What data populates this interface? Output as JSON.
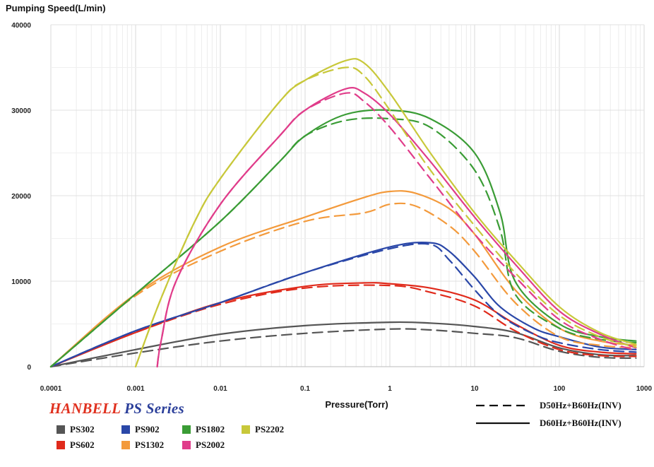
{
  "chart_data": {
    "type": "line",
    "ylabel": "Pumping Speed(L/min)",
    "xlabel": "Pressure(Torr)",
    "xscale": "log",
    "xlim": [
      0.0001,
      1000
    ],
    "ylim": [
      0,
      40000
    ],
    "xticks": [
      "0.0001",
      "0.001",
      "0.01",
      "0.1",
      "1",
      "10",
      "100",
      "1000"
    ],
    "yticks": [
      "0",
      "10000",
      "20000",
      "30000",
      "40000"
    ],
    "grid": true,
    "brand": {
      "primary": "HANBELL",
      "secondary": "PS Series"
    },
    "line_styles": [
      {
        "label": "D50Hz+B60Hz(INV)",
        "dash": "dashed"
      },
      {
        "label": "D60Hz+B60Hz(INV)",
        "dash": "solid"
      }
    ],
    "series": [
      {
        "name": "PS302",
        "color": "#555555",
        "solid": [
          [
            0.0001,
            0
          ],
          [
            0.001,
            2000
          ],
          [
            0.01,
            3800
          ],
          [
            0.1,
            4800
          ],
          [
            1,
            5200
          ],
          [
            3,
            5100
          ],
          [
            10,
            4700
          ],
          [
            30,
            4000
          ],
          [
            100,
            2200
          ],
          [
            300,
            1400
          ],
          [
            800,
            1300
          ]
        ],
        "dashed": [
          [
            0.0001,
            0
          ],
          [
            0.001,
            1600
          ],
          [
            0.01,
            3000
          ],
          [
            0.1,
            3900
          ],
          [
            1,
            4400
          ],
          [
            3,
            4300
          ],
          [
            10,
            3900
          ],
          [
            30,
            3400
          ],
          [
            100,
            1800
          ],
          [
            300,
            1100
          ],
          [
            800,
            1000
          ]
        ]
      },
      {
        "name": "PS602",
        "color": "#e02a1b",
        "solid": [
          [
            0.0001,
            0
          ],
          [
            0.001,
            4000
          ],
          [
            0.01,
            7500
          ],
          [
            0.1,
            9400
          ],
          [
            0.5,
            9800
          ],
          [
            1,
            9700
          ],
          [
            3,
            9200
          ],
          [
            10,
            7800
          ],
          [
            30,
            5000
          ],
          [
            100,
            2500
          ],
          [
            300,
            1700
          ],
          [
            800,
            1500
          ]
        ],
        "dashed": [
          [
            0.0001,
            0
          ],
          [
            0.001,
            4000
          ],
          [
            0.01,
            7300
          ],
          [
            0.1,
            9200
          ],
          [
            1,
            9500
          ],
          [
            3,
            8700
          ],
          [
            10,
            7100
          ],
          [
            30,
            4200
          ],
          [
            100,
            2000
          ],
          [
            300,
            1300
          ],
          [
            800,
            1200
          ]
        ]
      },
      {
        "name": "PS902",
        "color": "#2a47a8",
        "solid": [
          [
            0.0001,
            0
          ],
          [
            0.001,
            4200
          ],
          [
            0.01,
            7500
          ],
          [
            0.1,
            11000
          ],
          [
            1,
            14000
          ],
          [
            3,
            14500
          ],
          [
            5,
            13500
          ],
          [
            10,
            10500
          ],
          [
            20,
            7000
          ],
          [
            50,
            4500
          ],
          [
            100,
            3500
          ],
          [
            300,
            2300
          ],
          [
            800,
            2000
          ]
        ],
        "dashed": [
          [
            0.0001,
            0
          ],
          [
            0.001,
            4200
          ],
          [
            0.01,
            7500
          ],
          [
            0.1,
            11000
          ],
          [
            1,
            13800
          ],
          [
            3,
            14300
          ],
          [
            5,
            12500
          ],
          [
            10,
            9000
          ],
          [
            20,
            6000
          ],
          [
            50,
            3800
          ],
          [
            100,
            2800
          ],
          [
            300,
            2000
          ],
          [
            800,
            1700
          ]
        ]
      },
      {
        "name": "PS1302",
        "color": "#f39a3c",
        "solid": [
          [
            0.0001,
            0
          ],
          [
            0.001,
            8500
          ],
          [
            0.01,
            14000
          ],
          [
            0.1,
            17500
          ],
          [
            0.5,
            19800
          ],
          [
            1,
            20500
          ],
          [
            2,
            20300
          ],
          [
            5,
            18500
          ],
          [
            10,
            15500
          ],
          [
            30,
            9000
          ],
          [
            100,
            4500
          ],
          [
            300,
            3000
          ],
          [
            800,
            2500
          ]
        ],
        "dashed": [
          [
            0.0001,
            0
          ],
          [
            0.001,
            8300
          ],
          [
            0.01,
            13500
          ],
          [
            0.1,
            17000
          ],
          [
            0.5,
            18000
          ],
          [
            1,
            19000
          ],
          [
            2,
            18800
          ],
          [
            5,
            16500
          ],
          [
            10,
            13500
          ],
          [
            30,
            7500
          ],
          [
            100,
            3500
          ],
          [
            300,
            2500
          ],
          [
            800,
            2200
          ]
        ]
      },
      {
        "name": "PS1802",
        "color": "#3a9c35",
        "solid": [
          [
            0.0001,
            0
          ],
          [
            0.001,
            8500
          ],
          [
            0.01,
            17000
          ],
          [
            0.05,
            24000
          ],
          [
            0.1,
            27000
          ],
          [
            0.3,
            29500
          ],
          [
            1,
            30000
          ],
          [
            3,
            29000
          ],
          [
            10,
            25000
          ],
          [
            20,
            18000
          ],
          [
            30,
            10000
          ],
          [
            100,
            5000
          ],
          [
            300,
            3500
          ],
          [
            800,
            3000
          ]
        ],
        "dashed": [
          [
            0.0001,
            0
          ],
          [
            0.001,
            8500
          ],
          [
            0.01,
            17000
          ],
          [
            0.05,
            24000
          ],
          [
            0.1,
            27000
          ],
          [
            0.3,
            28800
          ],
          [
            1,
            29000
          ],
          [
            3,
            28000
          ],
          [
            10,
            23000
          ],
          [
            20,
            16000
          ],
          [
            30,
            8500
          ],
          [
            100,
            4500
          ],
          [
            300,
            3200
          ],
          [
            800,
            2800
          ]
        ]
      },
      {
        "name": "PS2002",
        "color": "#e03c8a",
        "solid": [
          [
            0.0018,
            0
          ],
          [
            0.002,
            3000
          ],
          [
            0.003,
            10000
          ],
          [
            0.01,
            19000
          ],
          [
            0.05,
            27000
          ],
          [
            0.1,
            30000
          ],
          [
            0.3,
            32500
          ],
          [
            0.5,
            32000
          ],
          [
            1,
            29500
          ],
          [
            3,
            24000
          ],
          [
            10,
            17500
          ],
          [
            30,
            12000
          ],
          [
            100,
            6500
          ],
          [
            300,
            3800
          ],
          [
            800,
            2200
          ]
        ],
        "dashed": [
          [
            0.0018,
            0
          ],
          [
            0.002,
            3000
          ],
          [
            0.003,
            10000
          ],
          [
            0.01,
            19000
          ],
          [
            0.05,
            27000
          ],
          [
            0.1,
            30000
          ],
          [
            0.3,
            32000
          ],
          [
            0.5,
            31000
          ],
          [
            1,
            28000
          ],
          [
            3,
            22000
          ],
          [
            10,
            15500
          ],
          [
            30,
            10500
          ],
          [
            100,
            5500
          ],
          [
            300,
            3200
          ],
          [
            800,
            1900
          ]
        ]
      },
      {
        "name": "PS2202",
        "color": "#c8c83a",
        "solid": [
          [
            0.001,
            0
          ],
          [
            0.002,
            8000
          ],
          [
            0.005,
            17000
          ],
          [
            0.01,
            22000
          ],
          [
            0.05,
            31000
          ],
          [
            0.1,
            33500
          ],
          [
            0.3,
            35800
          ],
          [
            0.5,
            35500
          ],
          [
            1,
            32000
          ],
          [
            3,
            25000
          ],
          [
            10,
            18000
          ],
          [
            30,
            12500
          ],
          [
            100,
            7000
          ],
          [
            300,
            4000
          ],
          [
            800,
            2600
          ]
        ],
        "dashed": [
          [
            0.001,
            0
          ],
          [
            0.002,
            8000
          ],
          [
            0.005,
            17000
          ],
          [
            0.01,
            22000
          ],
          [
            0.05,
            31000
          ],
          [
            0.1,
            33500
          ],
          [
            0.3,
            35000
          ],
          [
            0.5,
            34000
          ],
          [
            1,
            30000
          ],
          [
            3,
            23000
          ],
          [
            10,
            16500
          ],
          [
            30,
            11000
          ],
          [
            100,
            6000
          ],
          [
            300,
            3500
          ],
          [
            800,
            2300
          ]
        ]
      }
    ],
    "legend_order": [
      "PS302",
      "PS902",
      "PS1802",
      "PS2202",
      "PS602",
      "PS1302",
      "PS2002"
    ]
  }
}
